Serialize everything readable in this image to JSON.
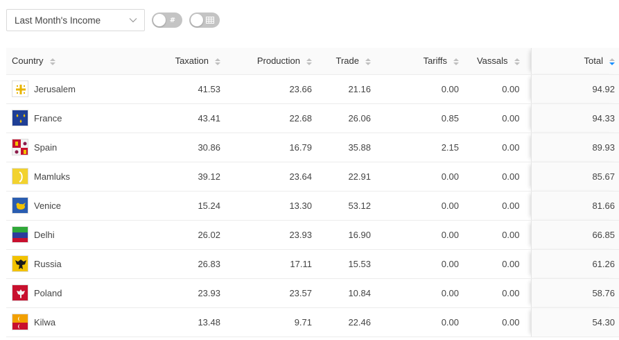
{
  "toolbar": {
    "period_select": "Last Month's Income",
    "toggle_numbers_symbol": "#",
    "toggle_table_icon": "grid-icon"
  },
  "table": {
    "columns": {
      "country": "Country",
      "taxation": "Taxation",
      "production": "Production",
      "trade": "Trade",
      "tariffs": "Tariffs",
      "vassals": "Vassals",
      "total": "Total"
    },
    "sorted_column": "total",
    "sort_direction": "descending",
    "sort_active_color": "#1890ff",
    "rows": [
      {
        "country": "Jerusalem",
        "flag_icon": "jerusalem-cross-flag-icon",
        "taxation": "41.53",
        "production": "23.66",
        "trade": "21.16",
        "tariffs": "0.00",
        "vassals": "0.00",
        "total": "94.92"
      },
      {
        "country": "France",
        "flag_icon": "france-fleur-de-lis-flag-icon",
        "taxation": "43.41",
        "production": "22.68",
        "trade": "26.06",
        "tariffs": "0.85",
        "vassals": "0.00",
        "total": "94.33"
      },
      {
        "country": "Spain",
        "flag_icon": "spain-quartered-flag-icon",
        "taxation": "30.86",
        "production": "16.79",
        "trade": "35.88",
        "tariffs": "2.15",
        "vassals": "0.00",
        "total": "89.93"
      },
      {
        "country": "Mamluks",
        "flag_icon": "mamluks-crescent-flag-icon",
        "taxation": "39.12",
        "production": "23.64",
        "trade": "22.91",
        "tariffs": "0.00",
        "vassals": "0.00",
        "total": "85.67"
      },
      {
        "country": "Venice",
        "flag_icon": "venice-lion-flag-icon",
        "taxation": "15.24",
        "production": "13.30",
        "trade": "53.12",
        "tariffs": "0.00",
        "vassals": "0.00",
        "total": "81.66"
      },
      {
        "country": "Delhi",
        "flag_icon": "delhi-tricolor-flag-icon",
        "taxation": "26.02",
        "production": "23.93",
        "trade": "16.90",
        "tariffs": "0.00",
        "vassals": "0.00",
        "total": "66.85"
      },
      {
        "country": "Russia",
        "flag_icon": "russia-eagle-flag-icon",
        "taxation": "26.83",
        "production": "17.11",
        "trade": "15.53",
        "tariffs": "0.00",
        "vassals": "0.00",
        "total": "61.26"
      },
      {
        "country": "Poland",
        "flag_icon": "poland-eagle-flag-icon",
        "taxation": "23.93",
        "production": "23.57",
        "trade": "10.84",
        "tariffs": "0.00",
        "vassals": "0.00",
        "total": "58.76"
      },
      {
        "country": "Kilwa",
        "flag_icon": "kilwa-crescent-flag-icon",
        "taxation": "13.48",
        "production": "9.71",
        "trade": "22.46",
        "tariffs": "0.00",
        "vassals": "0.00",
        "total": "54.30"
      }
    ]
  }
}
